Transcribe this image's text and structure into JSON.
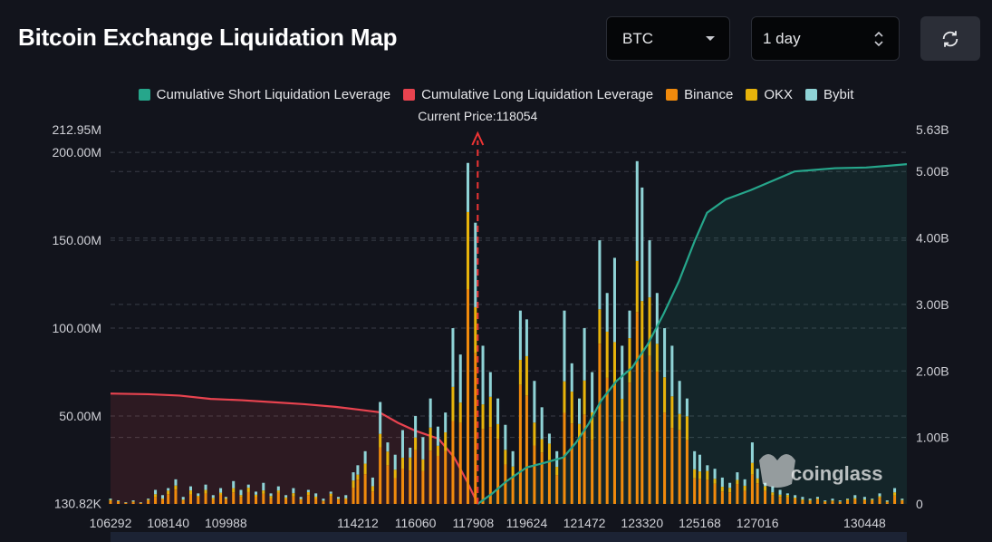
{
  "page": {
    "title": "Bitcoin Exchange Liquidation Map"
  },
  "controls": {
    "asset_value": "BTC",
    "range_value": "1 day",
    "refresh_icon": "refresh-icon"
  },
  "colors": {
    "short_cum": "#26a68b",
    "long_cum": "#e8434f",
    "binance": "#f08a0c",
    "okx": "#e7b30b",
    "bybit": "#8fd3d6",
    "current_price": "#ee3434"
  },
  "watermark": "coinglass",
  "chart_data": {
    "type": "bar",
    "current_price_label": "Current Price:118054",
    "current_price": 118054,
    "legend": [
      {
        "name": "Cumulative Short Liquidation Leverage",
        "color": "#26a68b"
      },
      {
        "name": "Cumulative Long Liquidation Leverage",
        "color": "#e8434f"
      },
      {
        "name": "Binance",
        "color": "#f08a0c"
      },
      {
        "name": "OKX",
        "color": "#e7b30b"
      },
      {
        "name": "Bybit",
        "color": "#8fd3d6"
      }
    ],
    "x_range": [
      106292,
      131800
    ],
    "x_ticks": [
      "106292",
      "108140",
      "109988",
      "114212",
      "116060",
      "117908",
      "119624",
      "121472",
      "123320",
      "125168",
      "127016",
      "130448"
    ],
    "x_tick_values": [
      106292,
      108140,
      109988,
      114212,
      116060,
      117908,
      119624,
      121472,
      123320,
      125168,
      127016,
      130448
    ],
    "y_left_ticks": [
      "212.95M",
      "200.00M",
      "150.00M",
      "100.00M",
      "50.00M",
      "130.82K"
    ],
    "y_left_tick_values": [
      212.95,
      200,
      150,
      100,
      50,
      0.13082
    ],
    "y_left_range_millions": [
      0,
      212.95
    ],
    "y_right_ticks": [
      "5.63B",
      "5.00B",
      "4.00B",
      "3.00B",
      "2.00B",
      "1.00B",
      "0"
    ],
    "y_right_tick_values": [
      5.63,
      5,
      4,
      3,
      2,
      1,
      0
    ],
    "y_right_range_billions": [
      0,
      5.63
    ],
    "grid": true,
    "bars_millions": [
      [
        106292,
        3
      ],
      [
        106540,
        2
      ],
      [
        106780,
        1
      ],
      [
        107020,
        2
      ],
      [
        107260,
        1
      ],
      [
        107500,
        3
      ],
      [
        107730,
        8
      ],
      [
        107960,
        5
      ],
      [
        108140,
        9
      ],
      [
        108380,
        14
      ],
      [
        108620,
        4
      ],
      [
        108860,
        10
      ],
      [
        109100,
        6
      ],
      [
        109340,
        11
      ],
      [
        109580,
        5
      ],
      [
        109820,
        9
      ],
      [
        109988,
        4
      ],
      [
        110230,
        13
      ],
      [
        110470,
        8
      ],
      [
        110710,
        11
      ],
      [
        110950,
        7
      ],
      [
        111190,
        12
      ],
      [
        111430,
        6
      ],
      [
        111670,
        10
      ],
      [
        111910,
        5
      ],
      [
        112150,
        9
      ],
      [
        112390,
        4
      ],
      [
        112630,
        8
      ],
      [
        112870,
        6
      ],
      [
        113110,
        3
      ],
      [
        113350,
        7
      ],
      [
        113590,
        4
      ],
      [
        113830,
        5
      ],
      [
        114070,
        18
      ],
      [
        114212,
        22
      ],
      [
        114450,
        30
      ],
      [
        114690,
        15
      ],
      [
        114930,
        58
      ],
      [
        115170,
        35
      ],
      [
        115410,
        28
      ],
      [
        115650,
        42
      ],
      [
        115890,
        32
      ],
      [
        116060,
        50
      ],
      [
        116300,
        38
      ],
      [
        116540,
        60
      ],
      [
        116780,
        44
      ],
      [
        117020,
        52
      ],
      [
        117260,
        100
      ],
      [
        117500,
        85
      ],
      [
        117740,
        194
      ],
      [
        117980,
        160
      ],
      [
        118220,
        90
      ],
      [
        118460,
        75
      ],
      [
        118700,
        60
      ],
      [
        118940,
        45
      ],
      [
        119180,
        30
      ],
      [
        119420,
        110
      ],
      [
        119624,
        105
      ],
      [
        119870,
        70
      ],
      [
        120110,
        55
      ],
      [
        120350,
        40
      ],
      [
        120590,
        30
      ],
      [
        120830,
        110
      ],
      [
        121070,
        80
      ],
      [
        121310,
        60
      ],
      [
        121472,
        100
      ],
      [
        121720,
        75
      ],
      [
        121960,
        150
      ],
      [
        122200,
        120
      ],
      [
        122440,
        140
      ],
      [
        122680,
        90
      ],
      [
        122920,
        110
      ],
      [
        123160,
        195
      ],
      [
        123320,
        180
      ],
      [
        123560,
        150
      ],
      [
        123800,
        120
      ],
      [
        124040,
        100
      ],
      [
        124280,
        90
      ],
      [
        124520,
        70
      ],
      [
        124760,
        60
      ],
      [
        125000,
        30
      ],
      [
        125168,
        28
      ],
      [
        125410,
        22
      ],
      [
        125650,
        20
      ],
      [
        125890,
        15
      ],
      [
        126130,
        12
      ],
      [
        126370,
        18
      ],
      [
        126610,
        14
      ],
      [
        126850,
        35
      ],
      [
        127016,
        20
      ],
      [
        127260,
        12
      ],
      [
        127500,
        10
      ],
      [
        127740,
        8
      ],
      [
        127980,
        6
      ],
      [
        128220,
        5
      ],
      [
        128460,
        4
      ],
      [
        128700,
        3
      ],
      [
        128940,
        4
      ],
      [
        129180,
        2
      ],
      [
        129420,
        3
      ],
      [
        129660,
        2
      ],
      [
        129900,
        3
      ],
      [
        130140,
        5
      ],
      [
        130448,
        4
      ],
      [
        130690,
        3
      ],
      [
        130930,
        6
      ],
      [
        131170,
        2
      ],
      [
        131410,
        9
      ],
      [
        131650,
        3
      ]
    ],
    "long_cumulative_billions": [
      [
        106292,
        1.66
      ],
      [
        107500,
        1.65
      ],
      [
        108500,
        1.63
      ],
      [
        109500,
        1.58
      ],
      [
        110500,
        1.56
      ],
      [
        111500,
        1.53
      ],
      [
        112500,
        1.5
      ],
      [
        113500,
        1.46
      ],
      [
        114212,
        1.42
      ],
      [
        114900,
        1.38
      ],
      [
        115500,
        1.22
      ],
      [
        116060,
        1.1
      ],
      [
        116800,
        0.98
      ],
      [
        117300,
        0.7
      ],
      [
        117700,
        0.35
      ],
      [
        118054,
        0.0
      ]
    ],
    "short_cumulative_billions": [
      [
        118054,
        0.0
      ],
      [
        118500,
        0.15
      ],
      [
        119000,
        0.35
      ],
      [
        119624,
        0.55
      ],
      [
        120200,
        0.62
      ],
      [
        120800,
        0.7
      ],
      [
        121200,
        0.92
      ],
      [
        121600,
        1.2
      ],
      [
        122000,
        1.55
      ],
      [
        122500,
        1.85
      ],
      [
        123000,
        2.05
      ],
      [
        123500,
        2.4
      ],
      [
        124000,
        2.85
      ],
      [
        124500,
        3.35
      ],
      [
        125000,
        3.95
      ],
      [
        125400,
        4.38
      ],
      [
        126000,
        4.58
      ],
      [
        126800,
        4.72
      ],
      [
        127500,
        4.86
      ],
      [
        128200,
        5.0
      ],
      [
        129500,
        5.05
      ],
      [
        130500,
        5.06
      ],
      [
        131300,
        5.09
      ],
      [
        131800,
        5.11
      ]
    ]
  }
}
